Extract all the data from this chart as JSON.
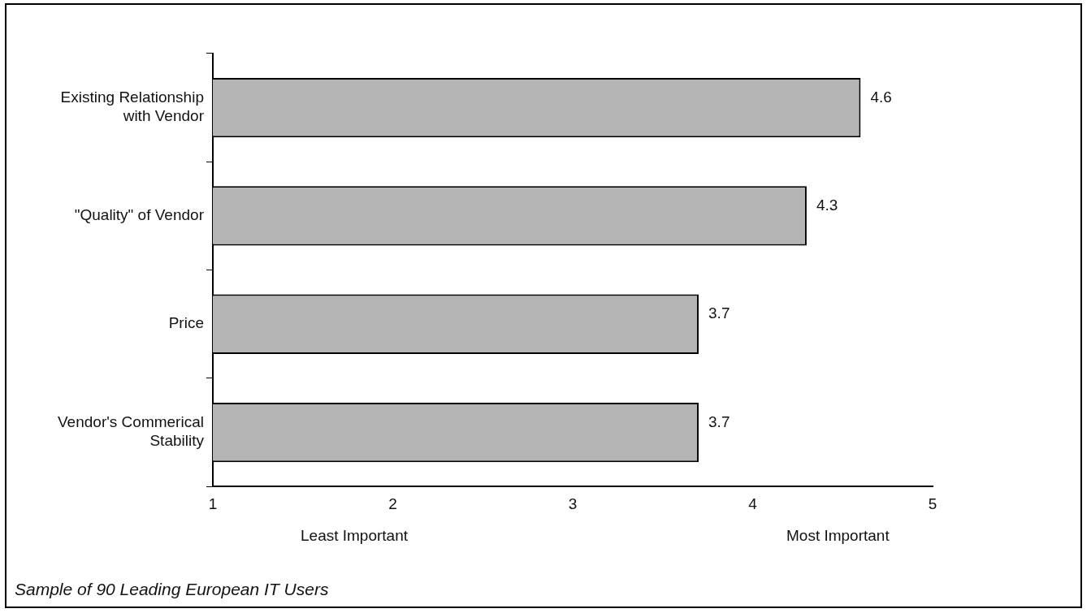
{
  "chart_data": {
    "type": "bar",
    "orientation": "horizontal",
    "categories": [
      "Existing Relationship with Vendor",
      "\"Quality\" of Vendor",
      "Price",
      "Vendor's Commerical Stability"
    ],
    "values": [
      4.6,
      4.3,
      3.7,
      3.7
    ],
    "color": "#b4b4b4",
    "xlim": [
      1,
      5
    ],
    "xticks": [
      1,
      2,
      3,
      4,
      5
    ],
    "grid": false,
    "data_labels": true,
    "annotations": [
      "Least Important",
      "Most Important",
      "Sample of 90 Leading European IT Users"
    ]
  }
}
